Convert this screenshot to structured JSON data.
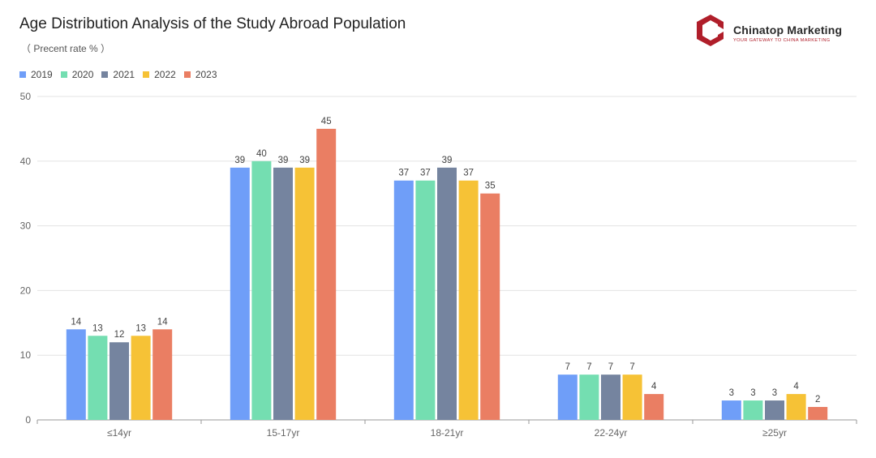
{
  "header": {
    "title": "Age Distribution Analysis of the Study Abroad Population",
    "subtitle": "（ Precent rate % ）"
  },
  "brand": {
    "name": "Chinatop Marketing",
    "tagline": "YOUR GATEWAY TO CHINA MARKETING",
    "color": "#b01e2a"
  },
  "chart_data": {
    "type": "bar",
    "title": "Age Distribution Analysis of the Study Abroad Population",
    "subtitle": "（ Precent rate % ）",
    "categories": [
      "≤14yr",
      "15-17yr",
      "18-21yr",
      "22-24yr",
      "≥25yr"
    ],
    "series": [
      {
        "name": "2019",
        "color": "#6f9ef8",
        "values": [
          14,
          39,
          37,
          7,
          3
        ]
      },
      {
        "name": "2020",
        "color": "#74deb1",
        "values": [
          13,
          40,
          37,
          7,
          3
        ]
      },
      {
        "name": "2021",
        "color": "#75849f",
        "values": [
          12,
          39,
          39,
          7,
          3
        ]
      },
      {
        "name": "2022",
        "color": "#f6c236",
        "values": [
          13,
          39,
          37,
          7,
          4
        ]
      },
      {
        "name": "2023",
        "color": "#ea7e63",
        "values": [
          14,
          45,
          35,
          4,
          2
        ]
      }
    ],
    "ylim": [
      0,
      50
    ],
    "yticks": [
      0,
      10,
      20,
      30,
      40,
      50
    ],
    "xlabel": "",
    "ylabel": "",
    "grid": true,
    "legend_position": "top-left"
  }
}
